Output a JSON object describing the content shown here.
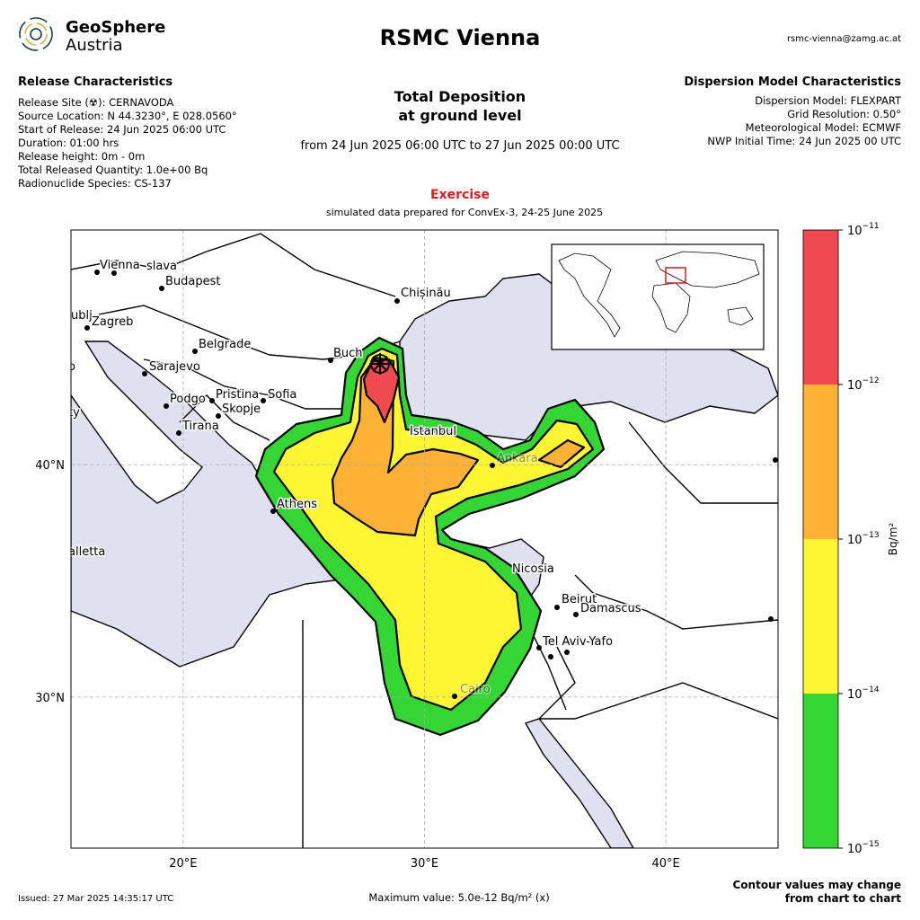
{
  "header": {
    "logo": [
      "GeoSphere",
      "Austria"
    ],
    "title": "RSMC Vienna",
    "contact": "rsmc-vienna@zamg.ac.at"
  },
  "release": {
    "title": "Release Characteristics",
    "lines": [
      "Release Site (☢): CERNAVODA",
      "Source Location: N 44.3230°, E 028.0560°",
      "Start of Release: 24 Jun 2025 06:00 UTC",
      "Duration: 01:00 hrs",
      "Release height: 0m - 0m",
      "Total Released Quantity: 1.0e+00 Bq",
      "Radionuclide Species: CS-137"
    ]
  },
  "model": {
    "title": "Dispersion Model Characteristics",
    "lines": [
      "Dispersion Model: FLEXPART",
      "Grid Resolution: 0.50°",
      "Meteorological Model: ECMWF",
      "NWP Initial Time: 24 Jun 2025 00 UTC"
    ]
  },
  "product": {
    "title": [
      "Total Deposition",
      "at ground level"
    ],
    "period": "from 24 Jun 2025 06:00 UTC to 27 Jun 2025 00:00 UTC",
    "status": "Exercise",
    "note": "simulated data prepared for ConvEx-3, 24-25 June 2025"
  },
  "map": {
    "xlim": [
      15.35,
      44.65
    ],
    "ylim": [
      23.5,
      50.1
    ],
    "xticks": [
      {
        "value": 20,
        "label": "20°E"
      },
      {
        "value": 30,
        "label": "30°E"
      },
      {
        "value": 40,
        "label": "40°E"
      }
    ],
    "yticks": [
      {
        "value": 30,
        "label": "30°N"
      },
      {
        "value": 40,
        "label": "40°N"
      }
    ],
    "grid": true,
    "cities": [
      "Vienna",
      "slava",
      "Budapest",
      "Chișinău",
      "ublj",
      "Zagreb",
      "Belgrade",
      "Buch",
      "Sarajevo",
      "o",
      "Podgo",
      "Pristina",
      "Sofia",
      "Skopje",
      "ty",
      "Tirana",
      "Istanbul",
      "Ankara",
      "Athens",
      "alletta",
      "Nicosia",
      "Beirut",
      "Damascus",
      "Tel Aviv-Yafo",
      "Cairo"
    ]
  },
  "colorbar": {
    "label": "Bq/m²",
    "scale": "log",
    "ticks": [
      {
        "value": 1e-15,
        "base": "10",
        "exponent": "−15"
      },
      {
        "value": 1e-14,
        "base": "10",
        "exponent": "−14"
      },
      {
        "value": 1e-13,
        "base": "10",
        "exponent": "−13"
      },
      {
        "value": 1e-12,
        "base": "10",
        "exponent": "−12"
      },
      {
        "value": 1e-11,
        "base": "10",
        "exponent": "−11"
      }
    ],
    "colors": [
      "#33d633",
      "#fef533",
      "#fdb236",
      "#f04a50"
    ]
  },
  "footer": {
    "issued": "Issued: 27 Mar 2025 14:35:17 UTC",
    "max": "Maximum value: 5.0e-12 Bq/m² (x)",
    "note": [
      "Contour values may change",
      "from chart to chart"
    ]
  }
}
